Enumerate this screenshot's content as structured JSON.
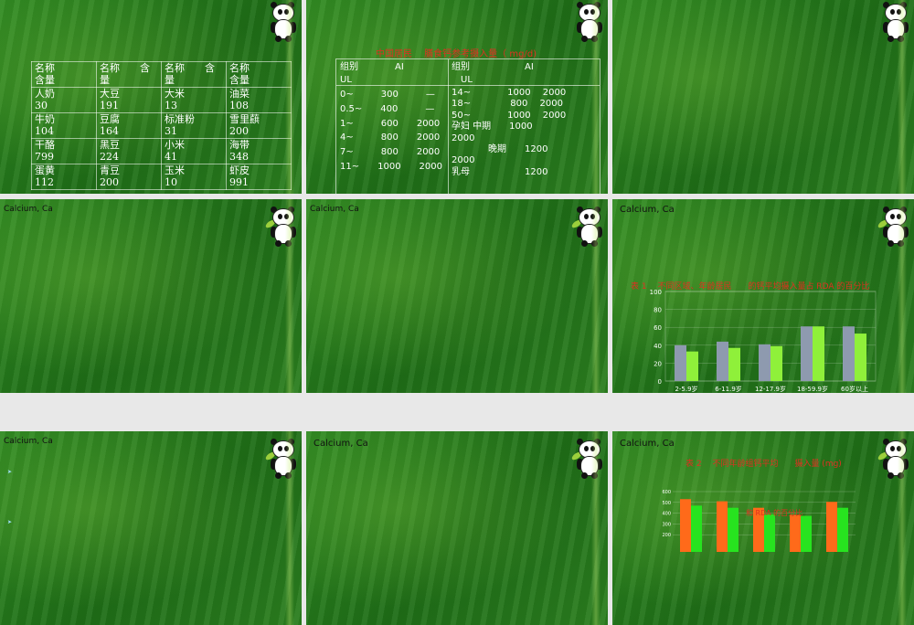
{
  "section_title": "Calcium, Ca",
  "slide1": {
    "table": [
      [
        "名称\n含量",
        "名称　　含\n量",
        "名称　　含\n量",
        "名称\n含量"
      ],
      [
        "人奶\n30",
        "大豆\n191",
        "大米\n13",
        "油菜\n108"
      ],
      [
        "牛奶\n104",
        "豆腐\n164",
        "标准粉\n31",
        "雪里蕻\n200"
      ],
      [
        "干酪\n799",
        "黑豆\n224",
        "小米\n41",
        "海带\n348"
      ],
      [
        "蛋黄\n112",
        "青豆\n200",
        "玉米\n10",
        "虾皮\n991"
      ]
    ]
  },
  "slide2": {
    "title": "中国居民　 膳食钙参考摄入量（ mg/d)",
    "header_left": [
      "组别　　　　AI",
      "UL"
    ],
    "header_right": [
      "组别　　　　　　AI",
      "　UL"
    ],
    "rows_left": [
      "0~　　　300　　　—",
      "0.5~　　400　　　—",
      "1~　　　600　　2000",
      "4~　　　800　　2000",
      "7~　　　800　　2000",
      "11~　　1000　　2000"
    ],
    "rows_right": [
      "14~　　　　1000　 2000",
      "18~　　　　 800　 2000",
      "50~　　　　1000　 2000",
      "孕妇 中期　　1000",
      "2000",
      "　　　　晚期　　1200",
      "2000",
      "乳母　　　　　　1200"
    ]
  },
  "slide6": {
    "title": "表 1 　不同区域、年龄居民　　的钙平均摄入量占 RDA 的百分比",
    "legend_urban": "城市平均摄入量",
    "legend_rural": "农村平均摄入量"
  },
  "slide9": {
    "title": "表 2 　不同年龄组钙平均　　摄入量 (mg)",
    "overlay": "和 RDA 的百分比"
  },
  "chart_data": [
    {
      "type": "bar",
      "categories": [
        "2-5.9岁",
        "6-11.9岁",
        "12-17.9岁",
        "18-59.9岁",
        "60岁以上"
      ],
      "series": [
        {
          "name": "城市平均摄入量",
          "values": [
            40,
            44,
            41,
            61,
            61
          ]
        },
        {
          "name": "农村平均摄入量",
          "values": [
            33,
            37,
            39,
            61,
            53
          ]
        }
      ],
      "ylim": [
        0,
        100
      ],
      "yticks": [
        0,
        20,
        40,
        60,
        80,
        100
      ]
    },
    {
      "type": "bar",
      "series": [
        {
          "values": [
            530,
            510,
            450,
            385,
            505
          ]
        },
        {
          "values": [
            470,
            450,
            390,
            375,
            450
          ]
        }
      ],
      "ylim": [
        0,
        600
      ],
      "yticks": [
        200,
        300,
        400,
        500,
        600
      ]
    }
  ],
  "colors": {
    "urban": "#8e9aaf",
    "rural": "#8ff03a",
    "orange": "#ff6a1a",
    "green2": "#27e31f"
  }
}
